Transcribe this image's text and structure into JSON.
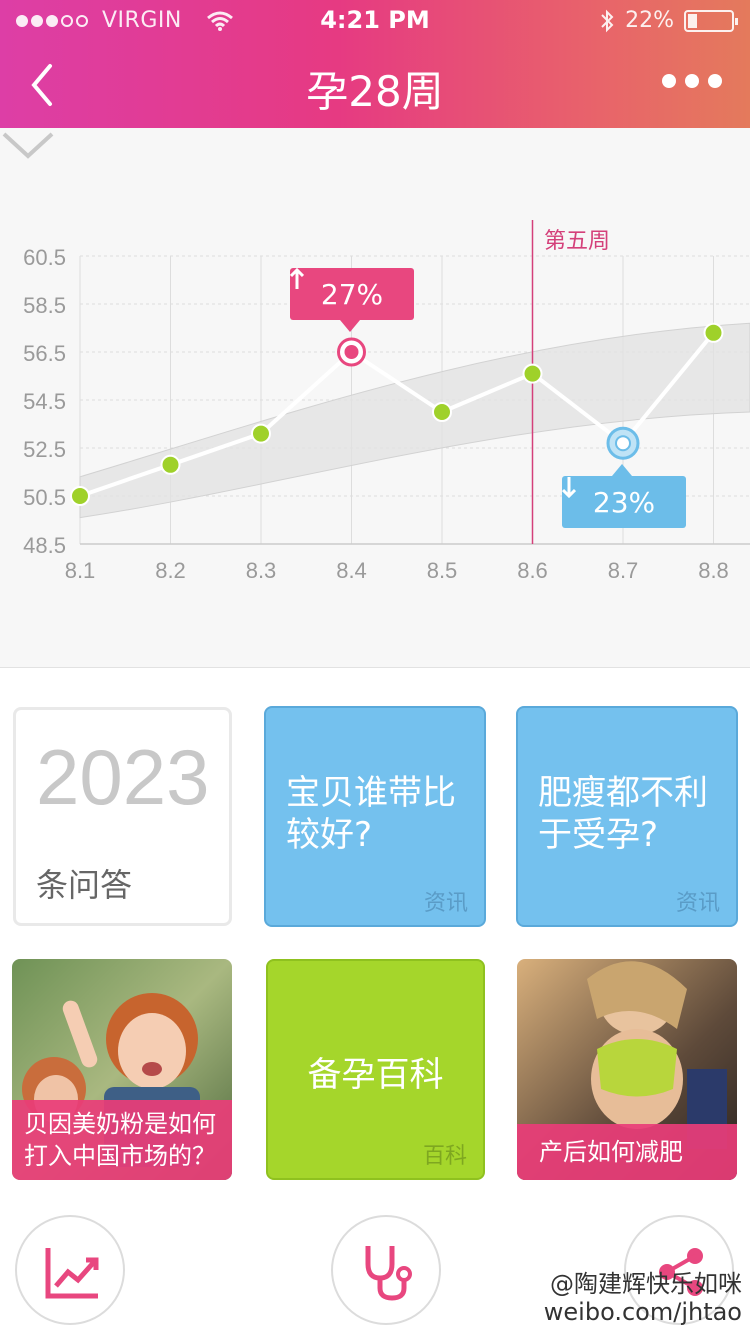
{
  "status_bar": {
    "carrier": "VIRGIN",
    "time": "4:21 PM",
    "battery": "22%"
  },
  "nav": {
    "title": "孕28周"
  },
  "chart_data": {
    "type": "line",
    "x": [
      "8.1",
      "8.2",
      "8.3",
      "8.4",
      "8.5",
      "8.6",
      "8.7",
      "8.8"
    ],
    "y_ticks": [
      "60.5",
      "58.5",
      "56.5",
      "54.5",
      "52.5",
      "50.5",
      "48.5"
    ],
    "ylim": [
      48.5,
      60.5
    ],
    "series": [
      {
        "values": [
          50.5,
          51.8,
          53.1,
          56.5,
          54.0,
          55.6,
          52.7,
          57.3
        ]
      }
    ],
    "band": {
      "upper_start": 51.3,
      "upper_end": 57.7,
      "lower_start": 49.6,
      "lower_end": 54.0
    },
    "marker_line_at": "8.6",
    "marker_label": "第五周",
    "annotations": [
      {
        "at": "8.4",
        "direction": "up",
        "text": "27%",
        "color": "#e8477f"
      },
      {
        "at": "8.7",
        "direction": "down",
        "text": "23%",
        "color": "#6cbde9"
      }
    ],
    "grid": true
  },
  "cards": {
    "count": {
      "number": "2023",
      "label": "条问答"
    },
    "question1": {
      "text": "宝贝谁带比较好?",
      "tag": "资讯"
    },
    "question2": {
      "text": "肥瘦都不利于受孕?",
      "tag": "资讯"
    },
    "photo1": {
      "caption": "贝因美奶粉是如何打入中国市场的？"
    },
    "encyclopedia": {
      "text": "备孕百科",
      "tag": "百科"
    },
    "photo2": {
      "caption": "产后如何减肥"
    }
  },
  "watermark": {
    "line1": "@陶建辉快乐如咪",
    "line2": "weibo.com/jhtao"
  },
  "colors": {
    "header_start": "#dd3ea6",
    "header_end": "#e47a5c",
    "pink": "#e8477f",
    "blue": "#74c1ee",
    "green": "#a5d62b",
    "point": "#9fd12a"
  },
  "icons": [
    "back-icon",
    "more-icon",
    "wifi-icon",
    "bluetooth-icon",
    "battery-icon",
    "chevron-down-icon",
    "chart-trend-icon",
    "stethoscope-icon",
    "share-icon"
  ]
}
